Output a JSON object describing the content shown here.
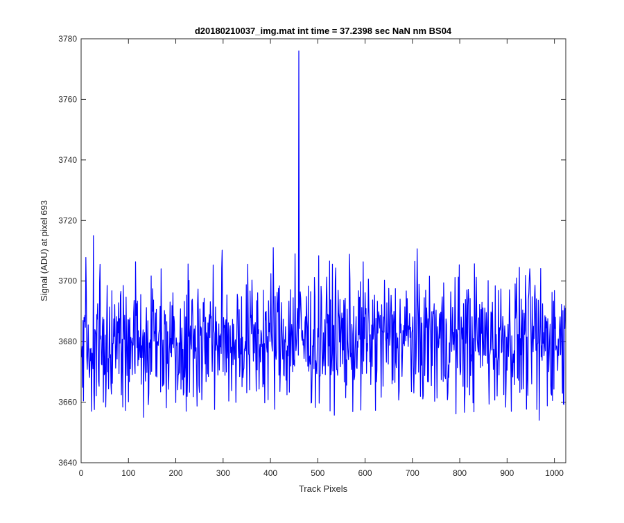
{
  "chart_data": {
    "type": "line",
    "title": "d20180210037_img.mat int time = 37.2398 sec  NaN nm BS04",
    "xlabel": "Track Pixels",
    "ylabel": "Signal (ADU) at pixel 693",
    "xlim": [
      0,
      1024
    ],
    "ylim": [
      3640,
      3780
    ],
    "xticks": [
      0,
      100,
      200,
      300,
      400,
      500,
      600,
      700,
      800,
      900,
      1000
    ],
    "yticks": [
      3640,
      3660,
      3680,
      3700,
      3720,
      3740,
      3760,
      3780
    ],
    "grid": false,
    "series": [
      {
        "color": "#0000ff",
        "x_start": 1,
        "x_step": 1,
        "noise_model": {
          "baseline": 3681,
          "range": [
            3655,
            3711
          ],
          "count": 1024
        },
        "highlights": [
          {
            "x": 26,
            "y": 3715
          },
          {
            "x": 22,
            "y": 3657
          },
          {
            "x": 132,
            "y": 3655
          },
          {
            "x": 222,
            "y": 3657
          },
          {
            "x": 406,
            "y": 3711
          },
          {
            "x": 452,
            "y": 3709
          },
          {
            "x": 460,
            "y": 3776
          },
          {
            "x": 968,
            "y": 3654
          }
        ]
      }
    ]
  }
}
